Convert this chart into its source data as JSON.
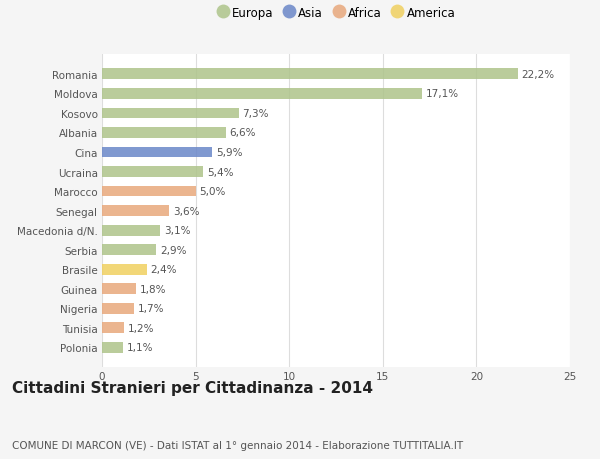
{
  "categories": [
    "Romania",
    "Moldova",
    "Kosovo",
    "Albania",
    "Cina",
    "Ucraina",
    "Marocco",
    "Senegal",
    "Macedonia d/N.",
    "Serbia",
    "Brasile",
    "Guinea",
    "Nigeria",
    "Tunisia",
    "Polonia"
  ],
  "values": [
    22.2,
    17.1,
    7.3,
    6.6,
    5.9,
    5.4,
    5.0,
    3.6,
    3.1,
    2.9,
    2.4,
    1.8,
    1.7,
    1.2,
    1.1
  ],
  "labels": [
    "22,2%",
    "17,1%",
    "7,3%",
    "6,6%",
    "5,9%",
    "5,4%",
    "5,0%",
    "3,6%",
    "3,1%",
    "2,9%",
    "2,4%",
    "1,8%",
    "1,7%",
    "1,2%",
    "1,1%"
  ],
  "colors": [
    "#aec48a",
    "#aec48a",
    "#aec48a",
    "#aec48a",
    "#6a87c8",
    "#aec48a",
    "#e8a87c",
    "#e8a87c",
    "#aec48a",
    "#aec48a",
    "#f0d060",
    "#e8a87c",
    "#e8a87c",
    "#e8a87c",
    "#aec48a"
  ],
  "legend_labels": [
    "Europa",
    "Asia",
    "Africa",
    "America"
  ],
  "legend_colors": [
    "#aec48a",
    "#6a87c8",
    "#e8a87c",
    "#f0d060"
  ],
  "title": "Cittadini Stranieri per Cittadinanza - 2014",
  "subtitle": "COMUNE DI MARCON (VE) - Dati ISTAT al 1° gennaio 2014 - Elaborazione TUTTITALIA.IT",
  "xlim": [
    0,
    25
  ],
  "xticks": [
    0,
    5,
    10,
    15,
    20,
    25
  ],
  "background_color": "#f5f5f5",
  "plot_background": "#ffffff",
  "grid_color": "#dddddd",
  "bar_height": 0.55,
  "title_fontsize": 11,
  "subtitle_fontsize": 7.5,
  "label_fontsize": 7.5,
  "tick_fontsize": 7.5,
  "legend_fontsize": 8.5
}
